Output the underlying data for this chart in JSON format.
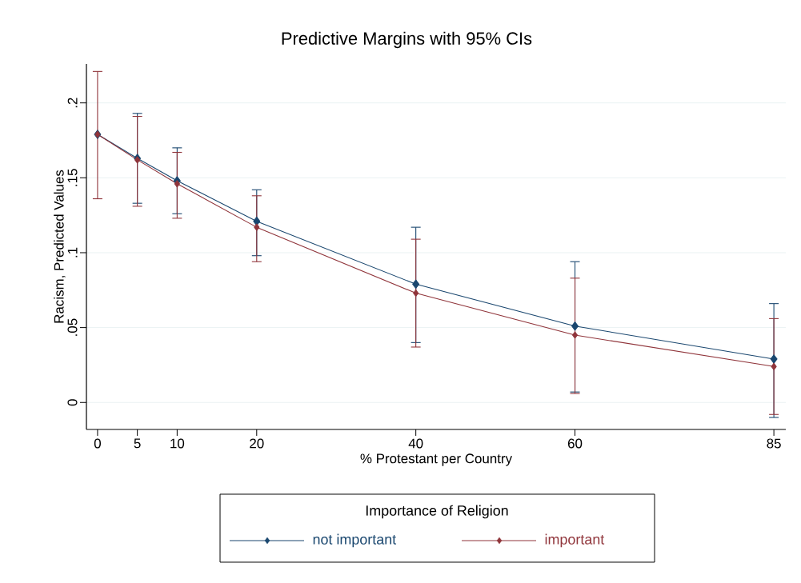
{
  "chart_data": {
    "type": "line",
    "title": "Predictive Margins with 95% CIs",
    "xlabel": "% Protestant per Country",
    "ylabel": "Racism, Predicted Values",
    "legend_title": "Importance of Religion",
    "x": [
      0,
      5,
      10,
      20,
      40,
      60,
      85
    ],
    "series": [
      {
        "name": "not important",
        "color": "#1a476f",
        "values": [
          0.179,
          0.163,
          0.148,
          0.121,
          0.079,
          0.051,
          0.029
        ],
        "errors": [
          null,
          [
            0.133,
            0.193
          ],
          [
            0.126,
            0.17
          ],
          [
            0.098,
            0.142
          ],
          [
            0.04,
            0.117
          ],
          [
            0.007,
            0.094
          ],
          [
            -0.01,
            0.066
          ]
        ]
      },
      {
        "name": "important",
        "color": "#90353b",
        "values": [
          0.179,
          0.162,
          0.146,
          0.117,
          0.073,
          0.045,
          0.024
        ],
        "errors": [
          [
            0.136,
            0.221
          ],
          [
            0.131,
            0.191
          ],
          [
            0.123,
            0.167
          ],
          [
            0.094,
            0.138
          ],
          [
            0.037,
            0.109
          ],
          [
            0.006,
            0.083
          ],
          [
            -0.008,
            0.056
          ]
        ]
      }
    ],
    "xlim": [
      -1.4,
      86.5
    ],
    "ylim": [
      -0.018,
      0.226
    ],
    "xticks": [
      0,
      5,
      10,
      20,
      40,
      60,
      85
    ],
    "yticks": [
      0,
      {
        "value": 0.05,
        "label": ".05"
      },
      {
        "value": 0.1,
        "label": ".1"
      },
      {
        "value": 0.15,
        "label": ".15"
      },
      {
        "value": 0.2,
        "label": ".2"
      }
    ],
    "grid": "y",
    "legend": "bottom",
    "marker": "diamond",
    "line_style": "solid"
  }
}
